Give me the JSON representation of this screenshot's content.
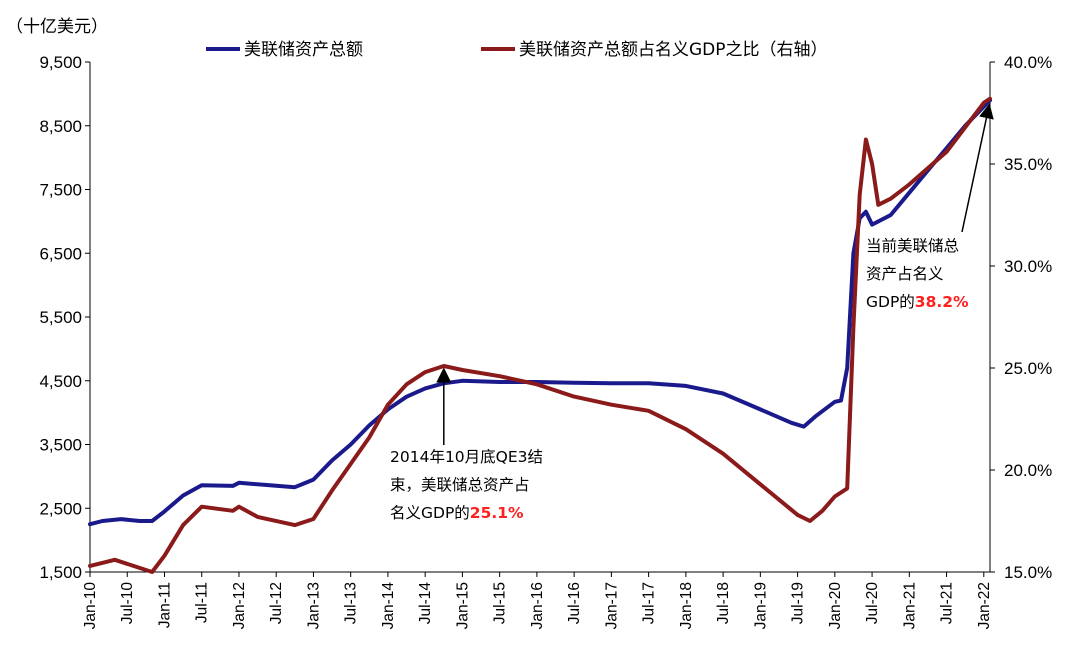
{
  "unit_label": "（十亿美元）",
  "colors": {
    "assets": "#1a1a8c",
    "ratio": "#8b1a1a",
    "highlight": "#ff2020",
    "axis": "#000000"
  },
  "chart_data": {
    "type": "line",
    "title": "",
    "xlabel": "",
    "ylabel": "（十亿美元）",
    "x_ticks": [
      "Jan-10",
      "Jul-10",
      "Jan-11",
      "Jul-11",
      "Jan-12",
      "Jul-12",
      "Jan-13",
      "Jul-13",
      "Jan-14",
      "Jul-14",
      "Jan-15",
      "Jul-15",
      "Jan-16",
      "Jul-16",
      "Jan-17",
      "Jul-17",
      "Jan-18",
      "Jul-18",
      "Jan-19",
      "Jul-19",
      "Jan-20",
      "Jul-20",
      "Jan-21",
      "Jul-21",
      "Jan-22"
    ],
    "ylim_left": [
      1500,
      9500
    ],
    "yticks_left": [
      "1,500",
      "2,500",
      "3,500",
      "4,500",
      "5,500",
      "6,500",
      "7,500",
      "8,500",
      "9,500"
    ],
    "ylim_right": [
      15.0,
      40.0
    ],
    "yticks_right": [
      "15.0%",
      "20.0%",
      "25.0%",
      "30.0%",
      "35.0%",
      "40.0%"
    ],
    "legend_position": "top",
    "series": [
      {
        "name": "美联储资产总额",
        "axis": "left",
        "points": [
          [
            "2010-01",
            2250
          ],
          [
            "2010-03",
            2300
          ],
          [
            "2010-06",
            2330
          ],
          [
            "2010-09",
            2300
          ],
          [
            "2010-11",
            2300
          ],
          [
            "2011-01",
            2450
          ],
          [
            "2011-04",
            2700
          ],
          [
            "2011-07",
            2860
          ],
          [
            "2011-12",
            2850
          ],
          [
            "2012-01",
            2900
          ],
          [
            "2012-06",
            2860
          ],
          [
            "2012-10",
            2830
          ],
          [
            "2013-01",
            2950
          ],
          [
            "2013-04",
            3250
          ],
          [
            "2013-07",
            3500
          ],
          [
            "2013-10",
            3800
          ],
          [
            "2014-01",
            4050
          ],
          [
            "2014-04",
            4250
          ],
          [
            "2014-07",
            4380
          ],
          [
            "2014-10",
            4460
          ],
          [
            "2015-01",
            4500
          ],
          [
            "2015-07",
            4480
          ],
          [
            "2016-01",
            4480
          ],
          [
            "2016-07",
            4470
          ],
          [
            "2017-01",
            4460
          ],
          [
            "2017-07",
            4460
          ],
          [
            "2018-01",
            4420
          ],
          [
            "2018-07",
            4300
          ],
          [
            "2019-01",
            4050
          ],
          [
            "2019-06",
            3840
          ],
          [
            "2019-08",
            3780
          ],
          [
            "2019-10",
            3950
          ],
          [
            "2020-01",
            4170
          ],
          [
            "2020-02",
            4190
          ],
          [
            "2020-03",
            4700
          ],
          [
            "2020-04",
            6500
          ],
          [
            "2020-05",
            7050
          ],
          [
            "2020-06",
            7150
          ],
          [
            "2020-07",
            6950
          ],
          [
            "2020-10",
            7100
          ],
          [
            "2021-01",
            7450
          ],
          [
            "2021-04",
            7800
          ],
          [
            "2021-07",
            8150
          ],
          [
            "2021-10",
            8500
          ],
          [
            "2022-01",
            8800
          ],
          [
            "2022-02",
            8900
          ]
        ]
      },
      {
        "name": "美联储资产总额占名义GDP之比（右轴）",
        "axis": "right",
        "points": [
          [
            "2010-01",
            15.3
          ],
          [
            "2010-05",
            15.6
          ],
          [
            "2010-08",
            15.3
          ],
          [
            "2010-11",
            15.0
          ],
          [
            "2011-01",
            15.8
          ],
          [
            "2011-04",
            17.3
          ],
          [
            "2011-07",
            18.2
          ],
          [
            "2011-12",
            18.0
          ],
          [
            "2012-01",
            18.2
          ],
          [
            "2012-04",
            17.7
          ],
          [
            "2012-10",
            17.3
          ],
          [
            "2013-01",
            17.6
          ],
          [
            "2013-04",
            19.0
          ],
          [
            "2013-07",
            20.3
          ],
          [
            "2013-10",
            21.6
          ],
          [
            "2014-01",
            23.2
          ],
          [
            "2014-04",
            24.2
          ],
          [
            "2014-07",
            24.8
          ],
          [
            "2014-10",
            25.1
          ],
          [
            "2015-01",
            24.9
          ],
          [
            "2015-07",
            24.6
          ],
          [
            "2016-01",
            24.2
          ],
          [
            "2016-07",
            23.6
          ],
          [
            "2017-01",
            23.2
          ],
          [
            "2017-07",
            22.9
          ],
          [
            "2018-01",
            22.0
          ],
          [
            "2018-07",
            20.8
          ],
          [
            "2019-01",
            19.3
          ],
          [
            "2019-07",
            17.8
          ],
          [
            "2019-09",
            17.5
          ],
          [
            "2019-11",
            18.0
          ],
          [
            "2020-01",
            18.7
          ],
          [
            "2020-03",
            19.1
          ],
          [
            "2020-04",
            27.0
          ],
          [
            "2020-05",
            33.5
          ],
          [
            "2020-06",
            36.2
          ],
          [
            "2020-07",
            35.0
          ],
          [
            "2020-08",
            33.0
          ],
          [
            "2020-10",
            33.3
          ],
          [
            "2021-01",
            34.0
          ],
          [
            "2021-04",
            34.8
          ],
          [
            "2021-07",
            35.6
          ],
          [
            "2021-10",
            36.8
          ],
          [
            "2022-01",
            38.0
          ],
          [
            "2022-02",
            38.2
          ]
        ]
      }
    ],
    "annotations": [
      {
        "text_lines": [
          "2014年10月底QE3结",
          "束，美联储总资产占"
        ],
        "last_line": "名义GDP的",
        "value": "25.1%",
        "target": [
          "2014-10",
          25.1
        ]
      },
      {
        "text_lines": [
          "当前美联储总",
          "资产占名义"
        ],
        "last_line": "GDP的",
        "value": "38.2%",
        "target": [
          "2022-02",
          38.2
        ]
      }
    ]
  }
}
